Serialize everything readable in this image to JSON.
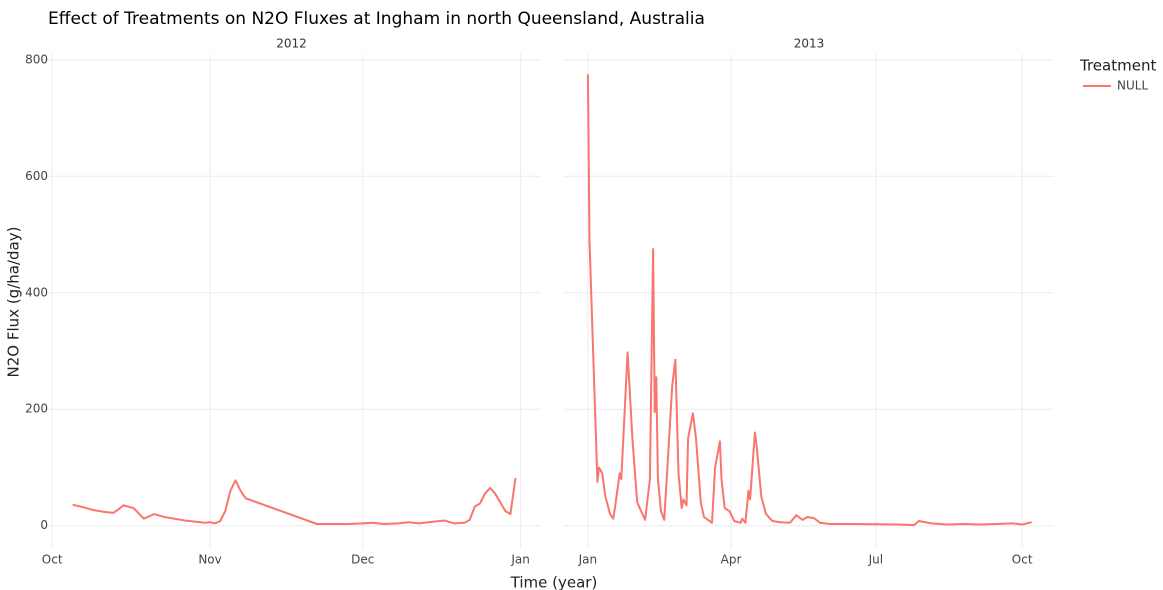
{
  "title": "Effect of Treatments on N2O Fluxes at Ingham in north Queensland, Australia",
  "x_label": "Time (year)",
  "y_label": "N2O Flux (g/ha/day)",
  "legend_title": "Treatment",
  "chart_data": [
    {
      "type": "line",
      "title": "2012",
      "x": [
        "2012-10-05",
        "2012-10-07",
        "2012-10-09",
        "2012-10-11",
        "2012-10-13",
        "2012-10-14",
        "2012-10-15",
        "2012-10-17",
        "2012-10-19",
        "2012-10-21",
        "2012-10-23",
        "2012-10-25",
        "2012-10-27",
        "2012-10-29",
        "2012-10-31",
        "2012-11-01",
        "2012-11-02",
        "2012-11-03",
        "2012-11-04",
        "2012-11-05",
        "2012-11-06",
        "2012-11-07",
        "2012-11-08",
        "2012-11-22",
        "2012-11-25",
        "2012-11-28",
        "2012-12-01",
        "2012-12-03",
        "2012-12-05",
        "2012-12-08",
        "2012-12-10",
        "2012-12-12",
        "2012-12-15",
        "2012-12-17",
        "2012-12-19",
        "2012-12-21",
        "2012-12-22",
        "2012-12-23",
        "2012-12-24",
        "2012-12-25",
        "2012-12-26",
        "2012-12-27",
        "2012-12-28",
        "2012-12-29",
        "2012-12-30",
        "2012-12-31"
      ],
      "series": [
        {
          "name": "NULL",
          "color": "#F8766D",
          "values": [
            36,
            32,
            27,
            24,
            22,
            28,
            35,
            30,
            12,
            20,
            15,
            12,
            9,
            7,
            5,
            6,
            4,
            8,
            25,
            60,
            78,
            60,
            47,
            3,
            3,
            3,
            4,
            5,
            3,
            4,
            6,
            4,
            7,
            9,
            4,
            5,
            10,
            33,
            38,
            55,
            65,
            55,
            40,
            25,
            20,
            82
          ]
        }
      ],
      "xlim": [
        "2012-09-29",
        "2013-01-05"
      ],
      "xticks": [
        {
          "value": "2012-10-01",
          "label": "Oct"
        },
        {
          "value": "2012-11-01",
          "label": "Nov"
        },
        {
          "value": "2012-12-01",
          "label": "Dec"
        },
        {
          "value": "2013-01-01",
          "label": "Jan"
        }
      ],
      "ylim": [
        -40,
        810
      ],
      "yticks": [
        0,
        200,
        400,
        600,
        800
      ],
      "grid": true
    },
    {
      "type": "line",
      "title": "2013",
      "x": [
        "2013-01-01",
        "2013-01-02",
        "2013-01-07",
        "2013-01-08",
        "2013-01-10",
        "2013-01-12",
        "2013-01-15",
        "2013-01-17",
        "2013-01-18",
        "2013-01-21",
        "2013-01-22",
        "2013-01-26",
        "2013-01-29",
        "2013-02-01",
        "2013-02-06",
        "2013-02-09",
        "2013-02-11",
        "2013-02-12",
        "2013-02-13",
        "2013-02-14",
        "2013-02-16",
        "2013-02-18",
        "2013-02-20",
        "2013-02-23",
        "2013-02-25",
        "2013-02-27",
        "2013-03-01",
        "2013-03-02",
        "2013-03-04",
        "2013-03-05",
        "2013-03-08",
        "2013-03-10",
        "2013-03-13",
        "2013-03-15",
        "2013-03-20",
        "2013-03-22",
        "2013-03-25",
        "2013-03-26",
        "2013-03-28",
        "2013-03-31",
        "2013-04-03",
        "2013-04-07",
        "2013-04-08",
        "2013-04-10",
        "2013-04-12",
        "2013-04-13",
        "2013-04-16",
        "2013-04-17",
        "2013-04-20",
        "2013-04-23",
        "2013-04-27",
        "2013-05-02",
        "2013-05-08",
        "2013-05-12",
        "2013-05-16",
        "2013-05-19",
        "2013-05-23",
        "2013-05-27",
        "2013-06-02",
        "2013-06-16",
        "2013-07-15",
        "2013-07-25",
        "2013-07-28",
        "2013-08-05",
        "2013-08-15",
        "2013-08-25",
        "2013-09-05",
        "2013-09-15",
        "2013-09-25",
        "2013-10-01",
        "2013-10-07"
      ],
      "series": [
        {
          "name": "NULL",
          "color": "#F8766D",
          "values": [
            775,
            490,
            75,
            100,
            90,
            50,
            20,
            12,
            30,
            90,
            80,
            298,
            150,
            40,
            10,
            80,
            475,
            195,
            255,
            80,
            25,
            10,
            100,
            240,
            285,
            90,
            30,
            45,
            35,
            150,
            193,
            150,
            40,
            15,
            5,
            100,
            145,
            80,
            30,
            25,
            8,
            5,
            12,
            5,
            60,
            45,
            160,
            140,
            50,
            20,
            8,
            6,
            5,
            18,
            10,
            15,
            13,
            5,
            3,
            3,
            2,
            1,
            8,
            4,
            2,
            3,
            2,
            3,
            4,
            2,
            6
          ]
        }
      ],
      "xlim": [
        "2012-12-17",
        "2013-10-21"
      ],
      "xticks": [
        {
          "value": "2013-01-01",
          "label": "Jan"
        },
        {
          "value": "2013-04-01",
          "label": "Apr"
        },
        {
          "value": "2013-07-01",
          "label": "Jul"
        },
        {
          "value": "2013-10-01",
          "label": "Oct"
        }
      ],
      "ylim": [
        -40,
        810
      ],
      "yticks": [
        0,
        200,
        400,
        600,
        800
      ],
      "grid": true
    }
  ]
}
